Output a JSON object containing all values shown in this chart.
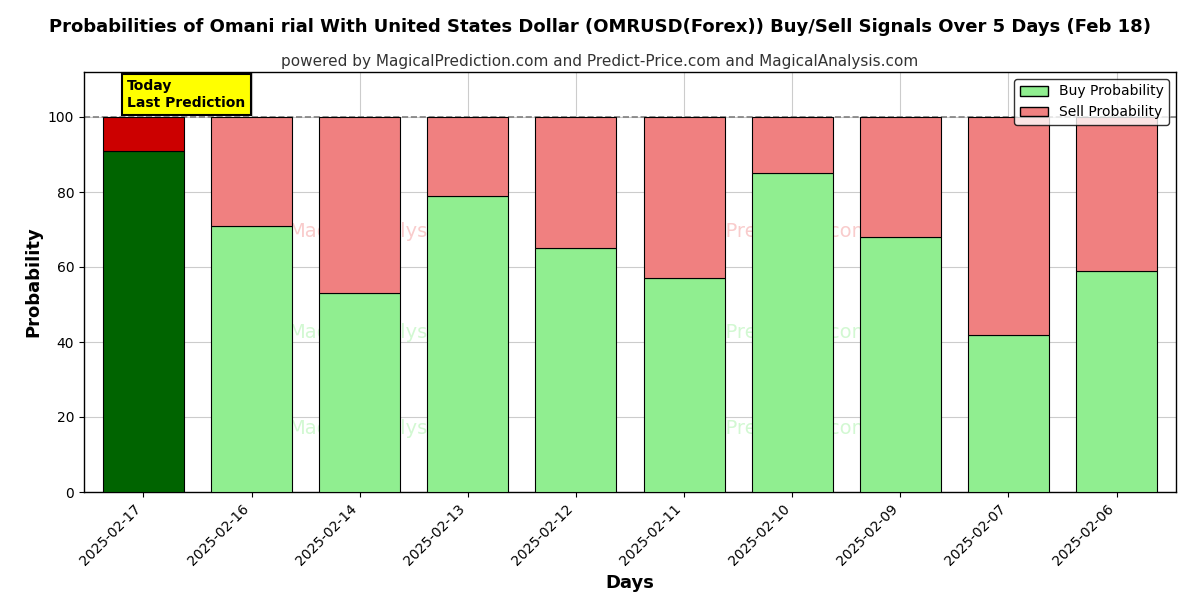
{
  "title": "Probabilities of Omani rial With United States Dollar (OMRUSD(Forex)) Buy/Sell Signals Over 5 Days (Feb 18)",
  "subtitle": "powered by MagicalPrediction.com and Predict-Price.com and MagicalAnalysis.com",
  "xlabel": "Days",
  "ylabel": "Probability",
  "categories": [
    "2025-02-17",
    "2025-02-16",
    "2025-02-14",
    "2025-02-13",
    "2025-02-12",
    "2025-02-11",
    "2025-02-10",
    "2025-02-09",
    "2025-02-07",
    "2025-02-06"
  ],
  "buy_values": [
    91,
    71,
    53,
    79,
    65,
    57,
    85,
    68,
    42,
    59
  ],
  "sell_values": [
    9,
    29,
    47,
    21,
    35,
    43,
    15,
    32,
    58,
    41
  ],
  "today_index": 0,
  "buy_color_today": "#006400",
  "sell_color_today": "#cc0000",
  "buy_color_normal": "#90ee90",
  "sell_color_normal": "#f08080",
  "bar_edge_color": "#000000",
  "background_color": "#ffffff",
  "grid_color": "#cccccc",
  "ylim": [
    0,
    112
  ],
  "yticks": [
    0,
    20,
    40,
    60,
    80,
    100
  ],
  "title_fontsize": 13,
  "subtitle_fontsize": 11,
  "axis_label_fontsize": 13,
  "tick_fontsize": 10,
  "legend_fontsize": 10,
  "today_label": "Today\nLast Prediction",
  "today_box_color": "#ffff00",
  "dashed_line_y": 100,
  "bar_width": 0.75
}
